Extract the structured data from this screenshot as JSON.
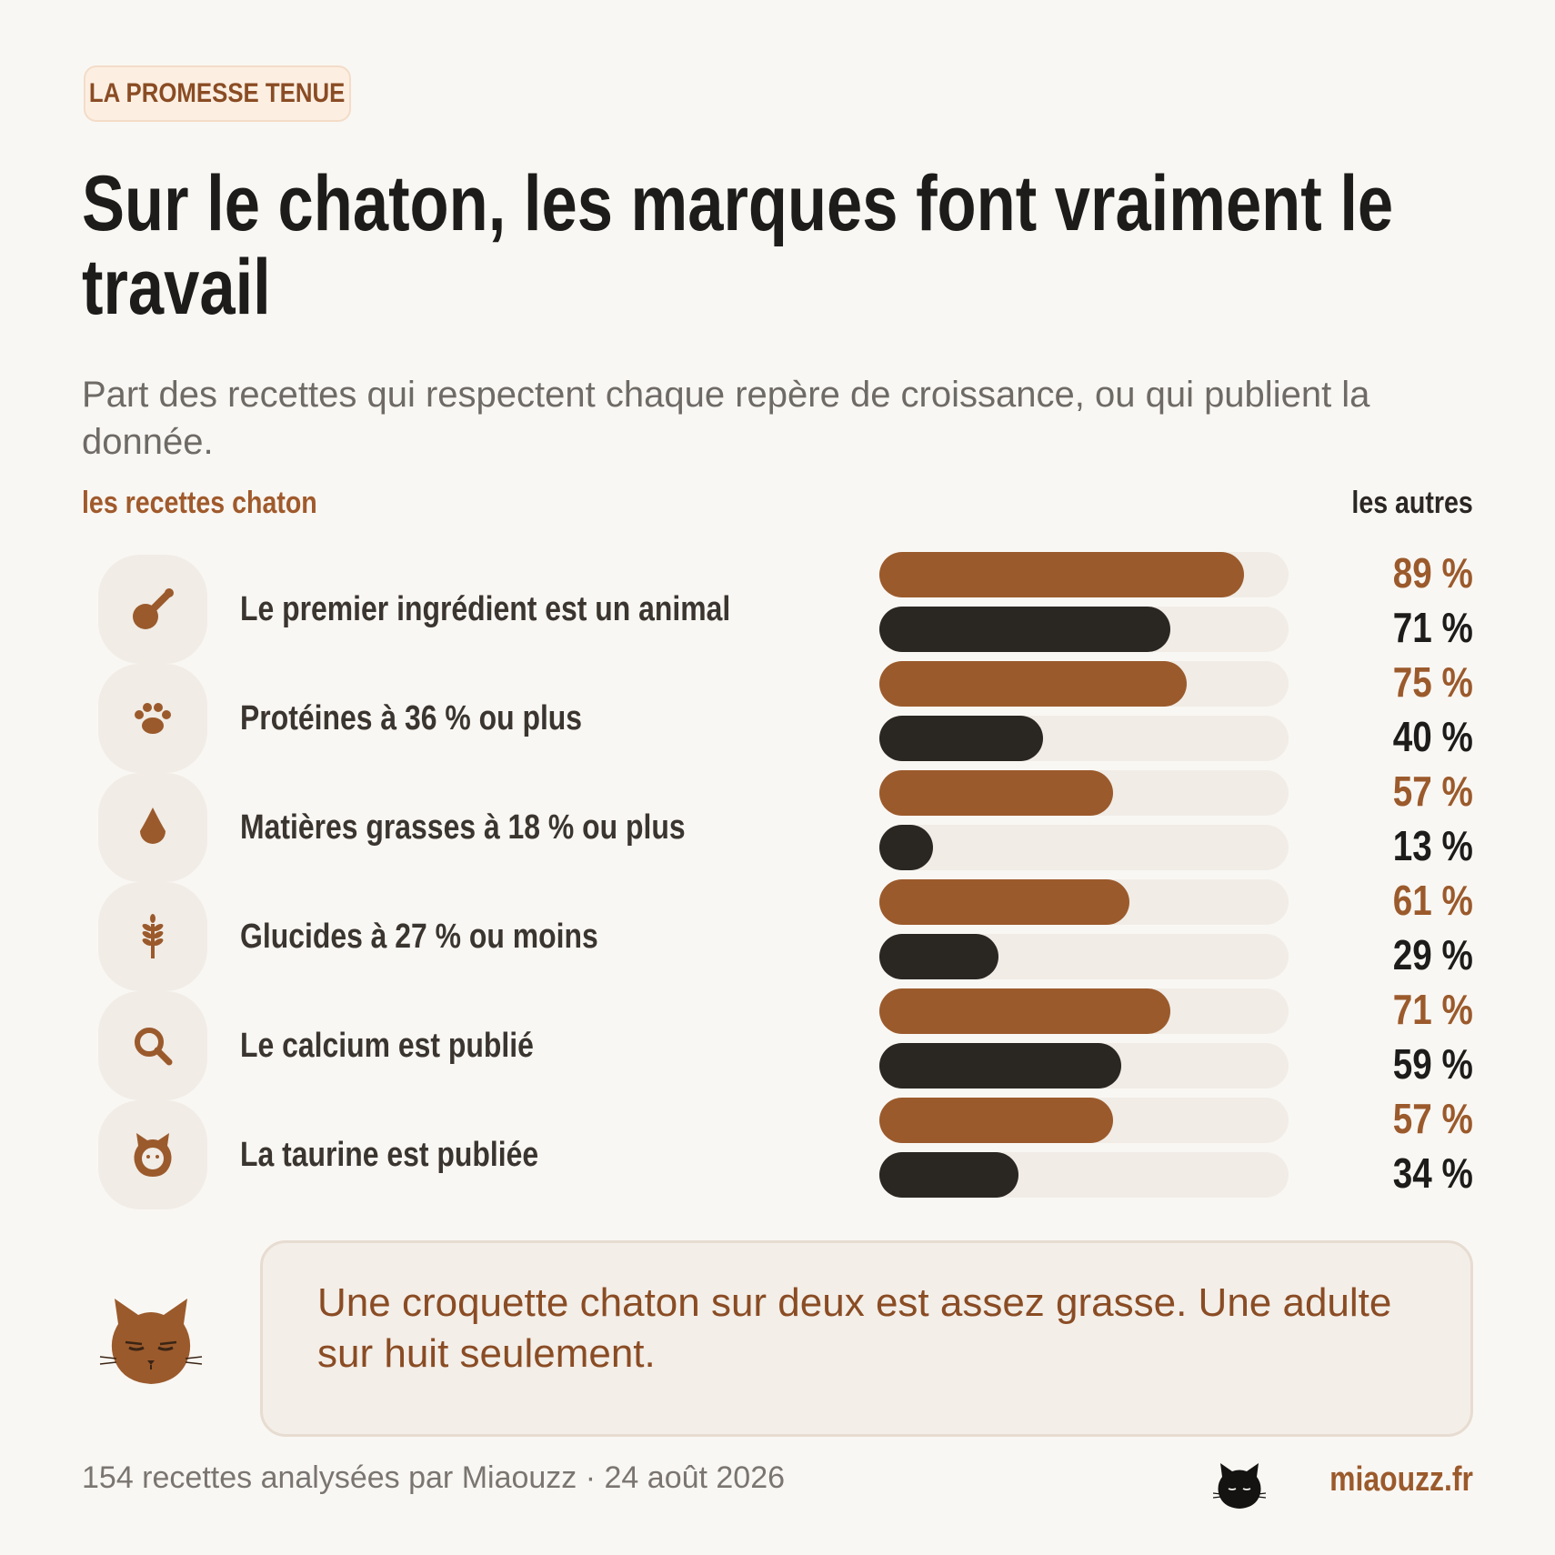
{
  "tag": "LA PROMESSE TENUE",
  "title": "Sur le chaton, les marques font vraiment le travail",
  "subtitle": "Part des recettes qui respectent chaque repère de croissance, ou qui publient la donnée.",
  "legend": {
    "kitten": "les recettes chaton",
    "other": "les autres"
  },
  "colors": {
    "kitten": "#9b5a2c",
    "other": "#2a2622",
    "track": "#f1ece6"
  },
  "chart_data": {
    "type": "bar",
    "orientation": "horizontal",
    "series": [
      {
        "name": "les recettes chaton",
        "values": [
          89,
          75,
          57,
          61,
          71,
          57
        ]
      },
      {
        "name": "les autres",
        "values": [
          71,
          40,
          13,
          29,
          59,
          34
        ]
      }
    ],
    "categories": [
      "Le premier ingrédient est un animal",
      "Protéines à 36 % ou plus",
      "Matières grasses à 18 % ou plus",
      "Glucides à 27 % ou moins",
      "Le calcium est publié",
      "La taurine est publiée"
    ],
    "icons": [
      "drumstick-icon",
      "paw-icon",
      "drop-icon",
      "wheat-icon",
      "magnifier-icon",
      "cat-face-icon"
    ],
    "bar_list": [
      {
        "series": "kitten",
        "value": 89,
        "label": "89 %"
      },
      {
        "series": "other",
        "value": 71,
        "label": "71 %"
      },
      {
        "series": "kitten",
        "value": 75,
        "label": "75 %"
      },
      {
        "series": "other",
        "value": 40,
        "label": "40 %"
      },
      {
        "series": "kitten",
        "value": 57,
        "label": "57 %"
      },
      {
        "series": "other",
        "value": 13,
        "label": "13 %"
      },
      {
        "series": "kitten",
        "value": 61,
        "label": "61 %"
      },
      {
        "series": "other",
        "value": 29,
        "label": "29 %"
      },
      {
        "series": "kitten",
        "value": 71,
        "label": "71 %"
      },
      {
        "series": "other",
        "value": 59,
        "label": "59 %"
      },
      {
        "series": "kitten",
        "value": 57,
        "label": "57 %"
      },
      {
        "series": "other",
        "value": 34,
        "label": "34 %"
      }
    ],
    "xlim": [
      0,
      100
    ],
    "unit": "%"
  },
  "callout": "Une croquette chaton sur deux est assez grasse. Une adulte sur huit seulement.",
  "footer": {
    "note": "154 recettes analysées par Miaouzz · 24 août 2026",
    "site": "miaouzz.fr"
  }
}
